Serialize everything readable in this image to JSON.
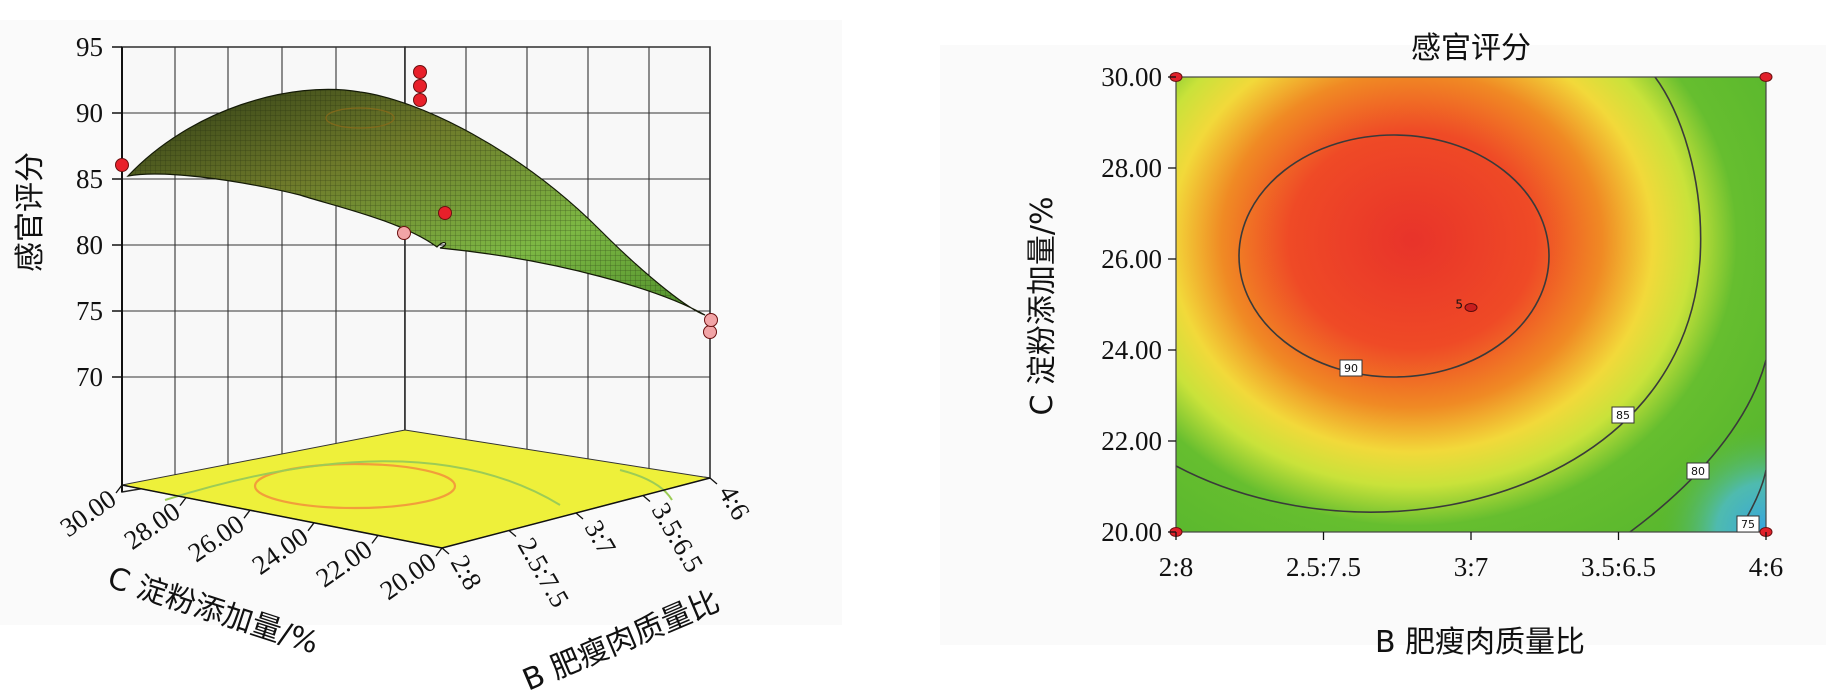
{
  "chart_data": [
    {
      "type": "surface-3d",
      "zlabel": "感官评分",
      "xlabel": "B 肥瘦肉质量比",
      "ylabel": "C 淀粉添加量/%",
      "x_ticks": [
        "2:8",
        "2.5:7.5",
        "3:7",
        "3.5:6.5",
        "4:6"
      ],
      "y_ticks": [
        "30.00",
        "28.00",
        "26.00",
        "24.00",
        "22.00",
        "20.00"
      ],
      "z_ticks": [
        "95",
        "90",
        "85",
        "80",
        "75",
        "70"
      ],
      "zlim": [
        70,
        95
      ],
      "x_range": [
        "2:8",
        "4:6"
      ],
      "y_range": [
        20,
        30
      ],
      "grid": true,
      "surface_color": "#6fa83a",
      "floor_color": "#eef03a",
      "surface_samples": [
        {
          "x": "2:8",
          "y": 30,
          "z": 84.5
        },
        {
          "x": "4:6",
          "y": 30,
          "z": 82.6
        },
        {
          "x": "4:6",
          "y": 20,
          "z": 74.5
        },
        {
          "x": "2:8",
          "y": 20,
          "z": 83.0
        },
        {
          "x": "2.5:7.5",
          "y": 26,
          "z": 91.5
        }
      ],
      "design_points": [
        {
          "x": "2:8",
          "y": 30,
          "z": 85.5,
          "above_surface": true
        },
        {
          "x": "3:7",
          "y": 25,
          "z": 93.0,
          "above_surface": true
        },
        {
          "x": "3:7",
          "y": 25,
          "z": 92.3,
          "above_surface": true
        },
        {
          "x": "3:7",
          "y": 25,
          "z": 91.2,
          "above_surface": true
        },
        {
          "x": "3:7",
          "y": 25,
          "z": 83.5,
          "above_surface": true
        },
        {
          "x": "3:7",
          "y": 20,
          "z": 81.3,
          "above_surface": false
        },
        {
          "x": "4:6",
          "y": 20,
          "z": 75.0,
          "above_surface": false
        },
        {
          "x": "4:6",
          "y": 30,
          "z": 80.0,
          "above_surface": false
        }
      ]
    },
    {
      "type": "contour",
      "title": "感官评分",
      "xlabel": "B 肥瘦肉质量比",
      "ylabel": "C 淀粉添加量/%",
      "x_ticks": [
        "2:8",
        "2.5:7.5",
        "3:7",
        "3.5:6.5",
        "4:6"
      ],
      "x_numeric": [
        2,
        2.5,
        3,
        3.5,
        4
      ],
      "y_ticks": [
        "30.00",
        "28.00",
        "26.00",
        "24.00",
        "22.00",
        "20.00"
      ],
      "xlim": [
        2,
        4
      ],
      "ylim": [
        20,
        30
      ],
      "optimum": {
        "x": 2.75,
        "y": 25.8,
        "z": 91.5
      },
      "contour_levels": [
        {
          "level": 90,
          "label": "90"
        },
        {
          "level": 85,
          "label": "85"
        },
        {
          "level": 80,
          "label": "80"
        },
        {
          "level": 75,
          "label": "75"
        }
      ],
      "center_point": {
        "x": 3,
        "y": 25,
        "label": "5"
      },
      "corner_points": [
        {
          "x": 2,
          "y": 30
        },
        {
          "x": 4,
          "y": 30
        },
        {
          "x": 2,
          "y": 20
        },
        {
          "x": 4,
          "y": 20
        }
      ],
      "colors": [
        "#e8392a",
        "#f07a24",
        "#f2e23a",
        "#5aba2e",
        "#3ca8e0"
      ]
    }
  ]
}
